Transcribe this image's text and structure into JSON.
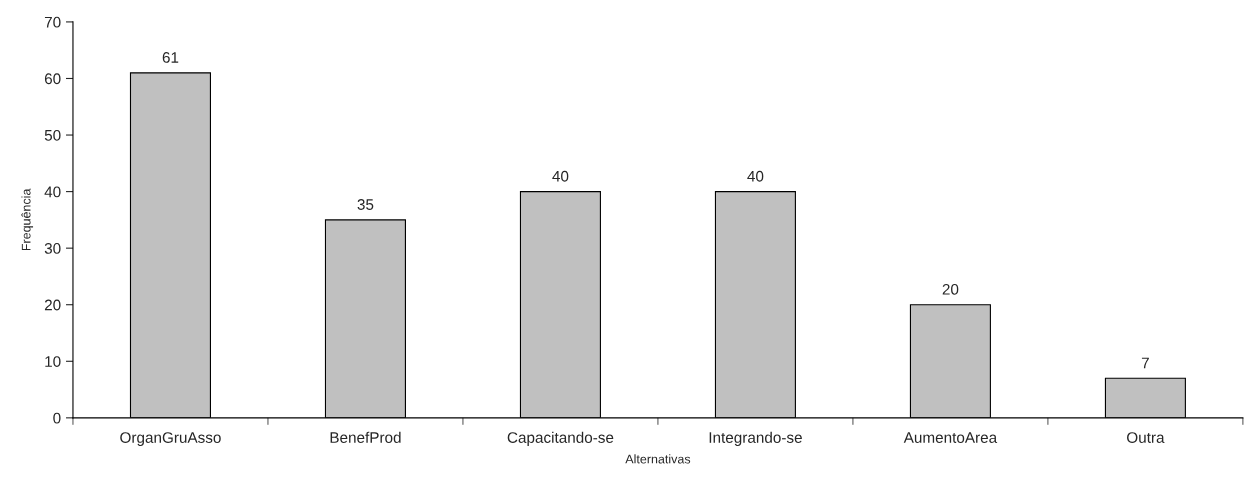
{
  "chart_data": {
    "type": "bar",
    "xlabel": "Alternativas",
    "ylabel": "Frequência",
    "categories": [
      "OrganGruAsso",
      "BenefProd",
      "Capacitando-se",
      "Integrando-se",
      "AumentoArea",
      "Outra"
    ],
    "values": [
      61,
      35,
      40,
      40,
      20,
      7
    ],
    "color": "#c0c0c0",
    "ylim": [
      0,
      70
    ],
    "yticks": [
      0,
      10,
      20,
      30,
      40,
      50,
      60,
      70
    ],
    "grid": false,
    "data_labels": true
  }
}
